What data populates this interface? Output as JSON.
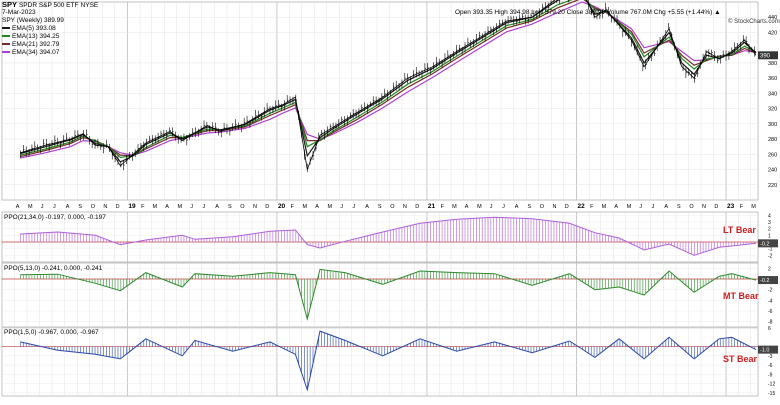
{
  "header": {
    "symbol": "SPY",
    "name": "SPDR S&P 500 ETF",
    "exchange": "NYSE",
    "interval": "SPY (Weekly) 389.99",
    "date": "7-Mar-2023",
    "ohlc": "Open 393.35  High 394.98  Low 379.20  Close 389.99  Volume 767.0M  Chg +5.55 (+1.44%) ▲",
    "credit": "© StockCharts.com",
    "ema_legend": [
      {
        "label": "EMA(5) 393.08",
        "color": "#1a1a1a"
      },
      {
        "label": "EMA(13) 394.25",
        "color": "#1e8a1e"
      },
      {
        "label": "EMA(21) 392.79",
        "color": "#7a2a2a"
      },
      {
        "label": "EMA(34) 394.07",
        "color": "#b040d0"
      }
    ]
  },
  "time_axis": {
    "labels": [
      "A",
      "M",
      "J",
      "J",
      "A",
      "S",
      "O",
      "N",
      "D",
      "19",
      "F",
      "M",
      "A",
      "M",
      "J",
      "J",
      "A",
      "S",
      "O",
      "N",
      "D",
      "20",
      "F",
      "M",
      "A",
      "M",
      "J",
      "J",
      "A",
      "S",
      "O",
      "N",
      "D",
      "21",
      "F",
      "M",
      "A",
      "M",
      "J",
      "J",
      "A",
      "S",
      "O",
      "N",
      "D",
      "22",
      "F",
      "M",
      "A",
      "M",
      "J",
      "J",
      "A",
      "S",
      "O",
      "N",
      "D",
      "23",
      "F",
      "M"
    ],
    "year_labels": [
      "19",
      "20",
      "21",
      "22",
      "23"
    ]
  },
  "chart_data": [
    {
      "type": "line",
      "panel": "price",
      "ylim": [
        200,
        460
      ],
      "y_ticks": [
        220,
        240,
        260,
        280,
        300,
        320,
        340,
        360,
        380,
        420,
        440
      ],
      "last_value_label": "390",
      "x": [
        "2018-04",
        "2018-06",
        "2018-08",
        "2018-09",
        "2018-10",
        "2018-11",
        "2018-12",
        "2019-01",
        "2019-02",
        "2019-04",
        "2019-05",
        "2019-07",
        "2019-08",
        "2019-10",
        "2019-12",
        "2020-01",
        "2020-02",
        "2020-03",
        "2020-04",
        "2020-05",
        "2020-07",
        "2020-09",
        "2020-11",
        "2021-01",
        "2021-03",
        "2021-05",
        "2021-07",
        "2021-09",
        "2021-11",
        "2022-01",
        "2022-02",
        "2022-03",
        "2022-05",
        "2022-06",
        "2022-08",
        "2022-09",
        "2022-10",
        "2022-11",
        "2022-12",
        "2023-01",
        "2023-02",
        "2023-03"
      ],
      "series": [
        {
          "name": "SPY",
          "color": "#000000",
          "values": [
            262,
            272,
            280,
            287,
            272,
            270,
            245,
            260,
            275,
            290,
            278,
            298,
            290,
            300,
            320,
            325,
            335,
            240,
            285,
            295,
            315,
            335,
            360,
            375,
            395,
            415,
            435,
            440,
            465,
            475,
            440,
            450,
            410,
            375,
            425,
            375,
            360,
            395,
            385,
            395,
            410,
            390
          ]
        },
        {
          "name": "EMA(5)",
          "color": "#1a1a1a",
          "values": [
            261,
            270,
            279,
            286,
            274,
            270,
            250,
            258,
            273,
            288,
            280,
            296,
            292,
            299,
            318,
            324,
            332,
            258,
            282,
            293,
            313,
            333,
            357,
            373,
            393,
            413,
            433,
            440,
            462,
            472,
            444,
            448,
            413,
            380,
            420,
            380,
            365,
            390,
            386,
            393,
            407,
            393
          ]
        },
        {
          "name": "EMA(13)",
          "color": "#1e8a1e",
          "values": [
            259,
            267,
            276,
            284,
            277,
            270,
            256,
            258,
            269,
            285,
            282,
            293,
            292,
            297,
            314,
            321,
            328,
            270,
            279,
            290,
            309,
            329,
            352,
            369,
            389,
            409,
            429,
            437,
            456,
            468,
            450,
            447,
            418,
            388,
            414,
            386,
            372,
            385,
            388,
            391,
            402,
            394
          ]
        },
        {
          "name": "EMA(21)",
          "color": "#7a2a2a",
          "values": [
            257,
            265,
            274,
            282,
            278,
            270,
            259,
            258,
            267,
            282,
            282,
            291,
            291,
            296,
            311,
            318,
            325,
            278,
            278,
            288,
            306,
            326,
            348,
            366,
            386,
            406,
            426,
            435,
            452,
            465,
            452,
            446,
            421,
            393,
            410,
            390,
            377,
            383,
            389,
            390,
            399,
            393
          ]
        },
        {
          "name": "EMA(34)",
          "color": "#b040d0",
          "values": [
            255,
            262,
            270,
            278,
            277,
            270,
            262,
            259,
            264,
            278,
            281,
            288,
            289,
            294,
            306,
            314,
            321,
            286,
            280,
            286,
            302,
            321,
            342,
            361,
            381,
            401,
            421,
            431,
            446,
            460,
            454,
            446,
            425,
            400,
            408,
            395,
            383,
            384,
            389,
            390,
            396,
            394
          ]
        }
      ]
    },
    {
      "type": "area",
      "panel": "PPO(21,34,0)",
      "label": "PPO(21,34,0) -0.197, 0.000, -0.197",
      "status": "LT Bear",
      "color": "#b060d8",
      "ylim": [
        -3,
        4.5
      ],
      "y_ticks": [
        4,
        3,
        2,
        1,
        -1,
        -2
      ],
      "last_value_label": "-0.2",
      "x": [
        "2018-04",
        "2018-07",
        "2018-10",
        "2018-12",
        "2019-02",
        "2019-05",
        "2019-06",
        "2019-09",
        "2019-12",
        "2020-02",
        "2020-03",
        "2020-04",
        "2020-06",
        "2020-09",
        "2020-12",
        "2021-03",
        "2021-06",
        "2021-09",
        "2021-12",
        "2022-02",
        "2022-04",
        "2022-06",
        "2022-08",
        "2022-10",
        "2022-12",
        "2023-01",
        "2023-03"
      ],
      "values": [
        1.2,
        1.5,
        1.0,
        -0.4,
        0.3,
        1.0,
        0.4,
        0.8,
        1.6,
        1.8,
        -0.4,
        -0.9,
        0.1,
        1.5,
        2.8,
        3.4,
        3.7,
        3.5,
        2.8,
        1.4,
        0.6,
        -1.2,
        -0.3,
        -2.0,
        -0.8,
        -0.6,
        -0.2
      ]
    },
    {
      "type": "area",
      "panel": "PPO(5,13,0)",
      "label": "PPO(5,13,0) -0.241, 0.000, -0.241",
      "status": "MT Bear",
      "color": "#2e8a2e",
      "ylim": [
        -9,
        3
      ],
      "y_ticks": [
        2,
        -2,
        -4,
        -6,
        -8
      ],
      "last_value_label": "-0.2",
      "x": [
        "2018-04",
        "2018-07",
        "2018-10",
        "2018-12",
        "2019-02",
        "2019-05",
        "2019-06",
        "2019-09",
        "2019-12",
        "2020-02",
        "2020-03",
        "2020-04",
        "2020-06",
        "2020-09",
        "2020-12",
        "2021-03",
        "2021-06",
        "2021-09",
        "2021-12",
        "2022-02",
        "2022-04",
        "2022-06",
        "2022-08",
        "2022-10",
        "2022-12",
        "2023-01",
        "2023-03"
      ],
      "values": [
        0.8,
        0.9,
        -0.8,
        -2.2,
        1.2,
        -1.5,
        1.0,
        0.5,
        1.2,
        0.8,
        -7.5,
        1.8,
        1.2,
        -1.0,
        1.5,
        1.2,
        1.0,
        -1.2,
        1.0,
        -2.0,
        -1.5,
        -3.0,
        1.5,
        -2.5,
        0.5,
        1.0,
        -0.2
      ]
    },
    {
      "type": "area",
      "panel": "PPO(1,5,0)",
      "label": "PPO(1,5,0) -0.967, 0.000, -0.967",
      "status": "ST Bear",
      "color": "#2a4aa8",
      "ylim": [
        -16,
        6
      ],
      "y_ticks": [
        6,
        -3,
        -6,
        -9,
        -12,
        -15
      ],
      "last_value_label": "-1.0",
      "x": [
        "2018-04",
        "2018-07",
        "2018-10",
        "2018-12",
        "2019-02",
        "2019-05",
        "2019-06",
        "2019-09",
        "2019-12",
        "2020-02",
        "2020-03",
        "2020-04",
        "2020-06",
        "2020-09",
        "2020-12",
        "2021-03",
        "2021-06",
        "2021-09",
        "2021-12",
        "2022-02",
        "2022-04",
        "2022-06",
        "2022-08",
        "2022-10",
        "2022-12",
        "2023-01",
        "2023-03"
      ],
      "values": [
        1.5,
        -1.2,
        -2.5,
        -4.0,
        2.5,
        -3.0,
        2.0,
        -1.5,
        1.5,
        -2.5,
        -14.0,
        5.0,
        2.0,
        -3.0,
        2.5,
        -1.5,
        1.5,
        -2.0,
        1.8,
        -3.5,
        2.5,
        -4.0,
        3.0,
        -4.0,
        2.5,
        3.0,
        -1.0
      ]
    }
  ]
}
